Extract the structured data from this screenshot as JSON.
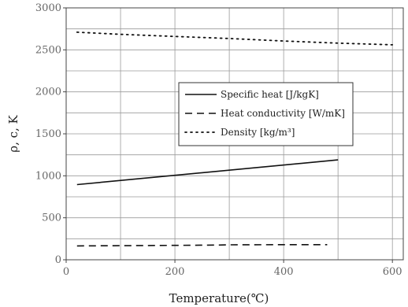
{
  "chart_data": {
    "type": "line",
    "xlabel": "Temperature(℃)",
    "ylabel": "ρ, c, K",
    "xlim": [
      0,
      620
    ],
    "ylim": [
      0,
      3000
    ],
    "xticks": [
      0,
      200,
      400,
      600
    ],
    "yticks": [
      0,
      500,
      1000,
      1500,
      2000,
      2500,
      3000
    ],
    "grid": true,
    "legend_position": "right",
    "series": [
      {
        "name": "Specific heat [J/kgK]",
        "style": "solid",
        "x": [
          20,
          500
        ],
        "y": [
          895,
          1190
        ]
      },
      {
        "name": "Heat conductivity [W/mK]",
        "style": "dashed",
        "x": [
          20,
          100,
          200,
          280,
          300,
          400,
          480
        ],
        "y": [
          165,
          168,
          172,
          175,
          178,
          180,
          180
        ]
      },
      {
        "name": "Density [kg/m³]",
        "style": "dotted",
        "x": [
          20,
          100,
          200,
          300,
          400,
          500,
          600
        ],
        "y": [
          2710,
          2685,
          2660,
          2635,
          2605,
          2580,
          2560
        ]
      }
    ]
  }
}
